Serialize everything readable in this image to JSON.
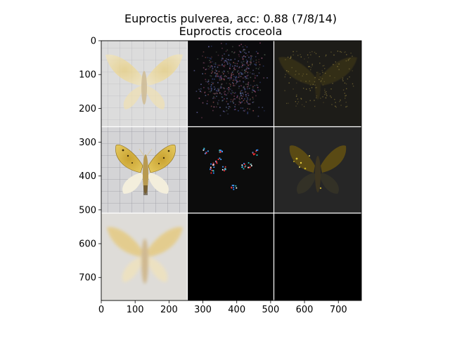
{
  "figure": {
    "title_line1": "Euproctis pulverea, acc: 0.88 (7/8/14)",
    "title_line2": "Euproctis croceola"
  },
  "axes": {
    "x_ticks": [
      "0",
      "100",
      "200",
      "300",
      "400",
      "500",
      "600",
      "700"
    ],
    "y_ticks": [
      "0",
      "100",
      "200",
      "300",
      "400",
      "500",
      "600",
      "700"
    ],
    "x_range": [
      0,
      768
    ],
    "y_range": [
      0,
      768
    ]
  },
  "panels": [
    {
      "name": "panel-r1c1-query-specimen",
      "kind": "specimen-faint"
    },
    {
      "name": "panel-r1c2-saliency-map",
      "kind": "saliency-noise"
    },
    {
      "name": "panel-r1c3-overlay",
      "kind": "overlay-dark"
    },
    {
      "name": "panel-r2c1-reference-specimen",
      "kind": "specimen-bright"
    },
    {
      "name": "panel-r2c2-saliency-map",
      "kind": "saliency-sparse"
    },
    {
      "name": "panel-r2c3-overlay",
      "kind": "overlay-wings"
    },
    {
      "name": "panel-r3c1-mean-specimen",
      "kind": "specimen-blurred"
    },
    {
      "name": "panel-r3c2-empty",
      "kind": "black"
    },
    {
      "name": "panel-r3c3-empty",
      "kind": "black"
    }
  ],
  "colors": {
    "grid_bg": "#c8c8c8",
    "wing_pale": "#ead9a6",
    "wing_yellow": "#d8b84a",
    "dark_panel": "#121212",
    "black_panel": "#000000"
  }
}
